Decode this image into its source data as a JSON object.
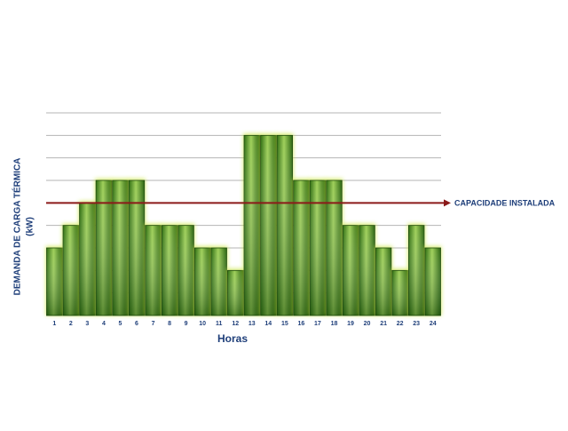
{
  "chart_data": {
    "type": "bar",
    "x_label": "Horas",
    "y_label": [
      "DEMANDA DE CARGA TÉRMICA",
      "(kW)"
    ],
    "categories": [
      "1",
      "2",
      "3",
      "4",
      "5",
      "6",
      "7",
      "8",
      "9",
      "10",
      "11",
      "12",
      "13",
      "14",
      "15",
      "16",
      "17",
      "18",
      "19",
      "20",
      "21",
      "22",
      "23",
      "24"
    ],
    "values": [
      3,
      4,
      5,
      6,
      6,
      6,
      4,
      4,
      4,
      3,
      3,
      2,
      8,
      8,
      8,
      6,
      6,
      6,
      4,
      4,
      3,
      2,
      4,
      3
    ],
    "color": "#3f8f1e",
    "ylim": [
      0,
      9
    ],
    "yticks": [
      0,
      1,
      2,
      3,
      4,
      5,
      6,
      7,
      8,
      9
    ],
    "grid": true,
    "show_tick_labels": false,
    "reference_line": {
      "value": 5,
      "label": "CAPACIDADE INSTALADA",
      "color": "#8b1a1a"
    }
  }
}
